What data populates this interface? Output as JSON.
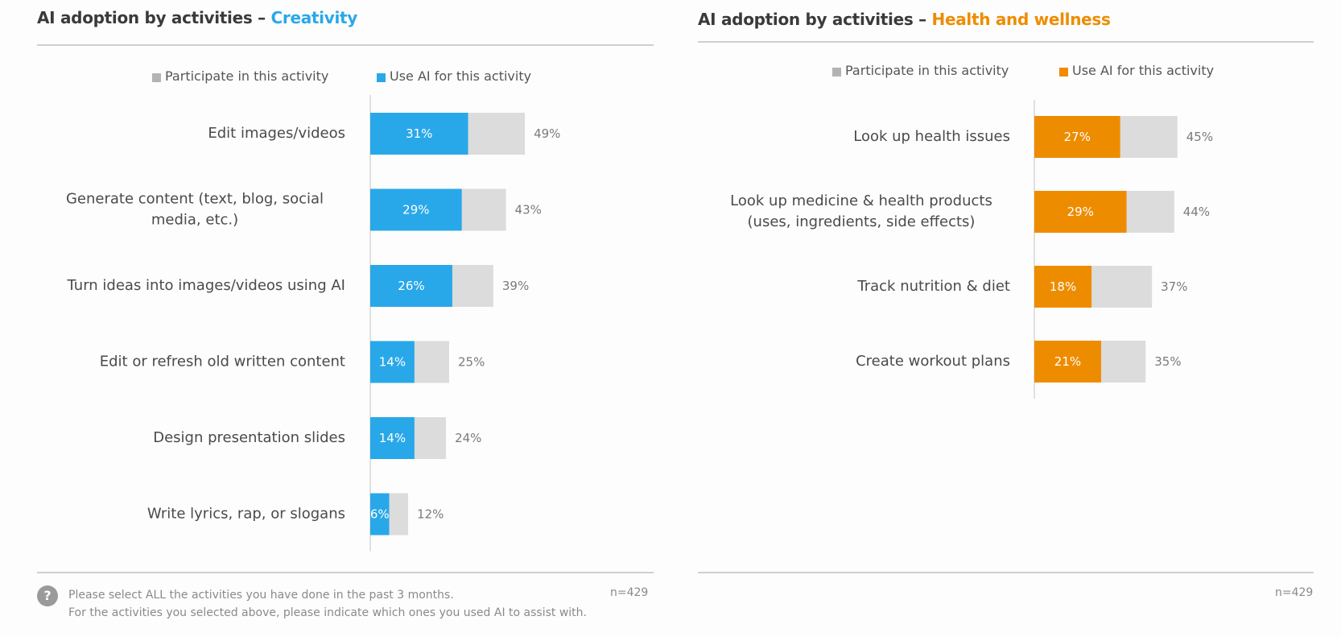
{
  "chart_data": [
    {
      "type": "bar",
      "orientation": "horizontal",
      "title_prefix": "AI adoption by activities –",
      "title_highlight": "Creativity",
      "legend": [
        "Participate in this activity",
        "Use AI for this activity"
      ],
      "categories": [
        "Edit images/videos",
        "Generate content (text, blog, social media, etc.)",
        "Turn ideas into images/videos using AI",
        "Edit or refresh old written content",
        "Design presentation slides",
        "Write lyrics, rap, or slogans"
      ],
      "series": [
        {
          "name": "Participate in this activity",
          "values": [
            49,
            43,
            39,
            25,
            24,
            12
          ]
        },
        {
          "name": "Use AI for this activity",
          "values": [
            31,
            29,
            26,
            14,
            14,
            6
          ]
        }
      ],
      "value_suffix": "%",
      "n_label": "n=429"
    },
    {
      "type": "bar",
      "orientation": "horizontal",
      "title_prefix": "AI adoption by activities –",
      "title_highlight": "Health and wellness",
      "legend": [
        "Participate in this activity",
        "Use AI for this activity"
      ],
      "categories": [
        "Look up health issues",
        "Look up medicine & health products (uses, ingredients, side effects)",
        "Track nutrition & diet",
        "Create workout plans"
      ],
      "series": [
        {
          "name": "Participate in this activity",
          "values": [
            45,
            44,
            37,
            35
          ]
        },
        {
          "name": "Use AI for this activity",
          "values": [
            27,
            29,
            18,
            21
          ]
        }
      ],
      "value_suffix": "%",
      "n_label": "n=429"
    }
  ],
  "colors": {
    "grey": "#dcdcdc",
    "blue": "#29a8e9",
    "orange": "#ee8c00"
  },
  "footnote": {
    "icon": "question-icon",
    "line1": "Please select ALL the activities you have done in the past 3 months.",
    "line2": "For the activities you selected above, please indicate which ones you used AI to assist with."
  }
}
